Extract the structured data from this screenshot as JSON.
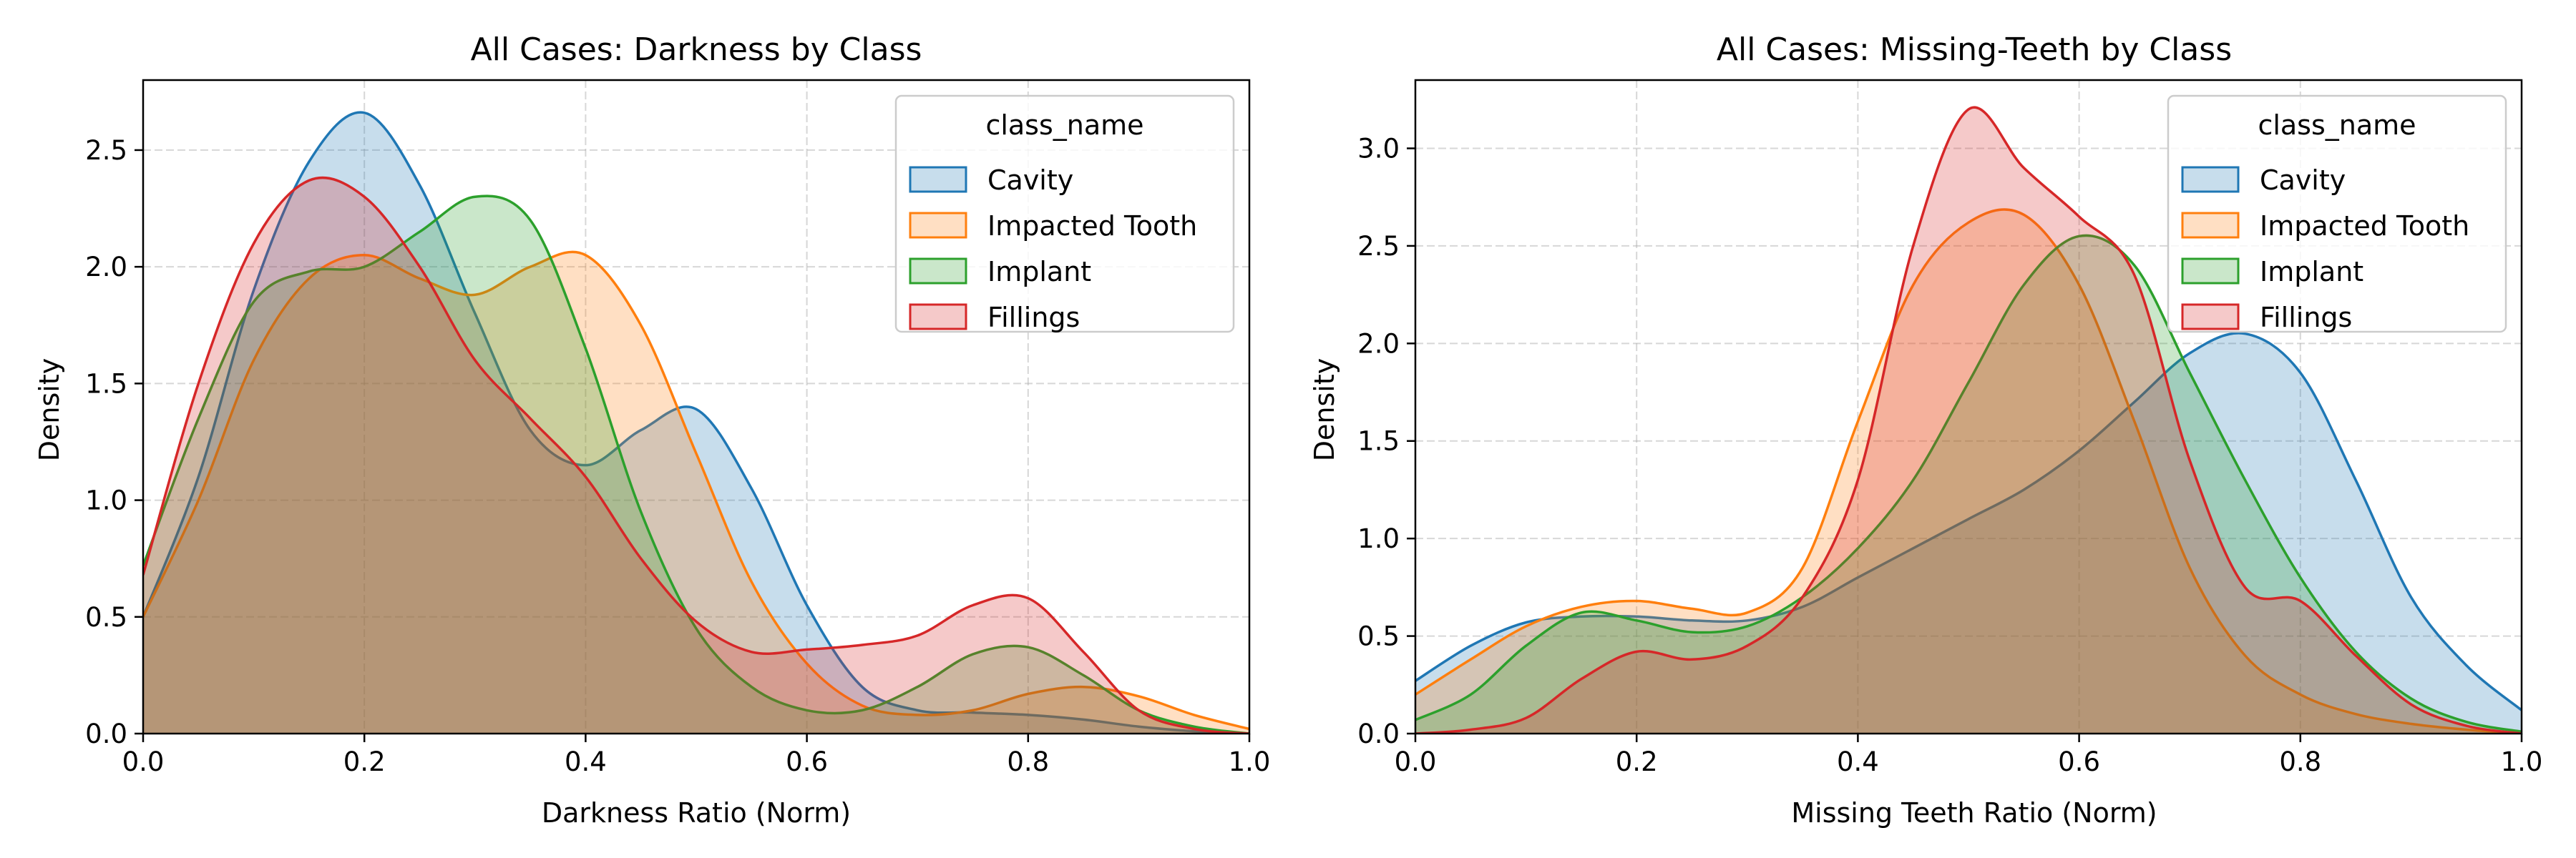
{
  "chart_data": [
    {
      "type": "area",
      "title": "All Cases: Darkness by Class",
      "xlabel": "Darkness Ratio (Norm)",
      "ylabel": "Density",
      "xlim": [
        0,
        1
      ],
      "ylim": [
        0,
        2.8
      ],
      "xticks": [
        0.0,
        0.2,
        0.4,
        0.6,
        0.8,
        1.0
      ],
      "xtick_labels": [
        "0.0",
        "0.2",
        "0.4",
        "0.6",
        "0.8",
        "1.0"
      ],
      "yticks": [
        0.0,
        0.5,
        1.0,
        1.5,
        2.0,
        2.5
      ],
      "ytick_labels": [
        "0.0",
        "0.5",
        "1.0",
        "1.5",
        "2.0",
        "2.5"
      ],
      "grid": true,
      "legend": {
        "title": "class_name",
        "position": "top-right"
      },
      "series": [
        {
          "name": "Cavity",
          "color": "#1f77b4",
          "x": [
            0.0,
            0.05,
            0.1,
            0.15,
            0.2,
            0.25,
            0.3,
            0.35,
            0.4,
            0.45,
            0.5,
            0.55,
            0.6,
            0.65,
            0.7,
            0.75,
            0.8,
            0.85,
            0.9,
            0.95,
            1.0
          ],
          "y": [
            0.5,
            1.1,
            1.9,
            2.45,
            2.66,
            2.35,
            1.8,
            1.3,
            1.15,
            1.3,
            1.39,
            1.05,
            0.55,
            0.2,
            0.1,
            0.09,
            0.08,
            0.06,
            0.03,
            0.01,
            0.0
          ]
        },
        {
          "name": "Impacted Tooth",
          "color": "#ff7f0e",
          "x": [
            0.0,
            0.05,
            0.1,
            0.15,
            0.2,
            0.25,
            0.3,
            0.35,
            0.4,
            0.45,
            0.5,
            0.55,
            0.6,
            0.65,
            0.7,
            0.75,
            0.8,
            0.85,
            0.9,
            0.95,
            1.0
          ],
          "y": [
            0.5,
            1.0,
            1.6,
            1.95,
            2.05,
            1.95,
            1.88,
            2.0,
            2.05,
            1.75,
            1.2,
            0.65,
            0.3,
            0.12,
            0.08,
            0.1,
            0.17,
            0.2,
            0.16,
            0.08,
            0.02
          ]
        },
        {
          "name": "Implant",
          "color": "#2ca02c",
          "x": [
            0.0,
            0.05,
            0.1,
            0.15,
            0.2,
            0.25,
            0.3,
            0.35,
            0.4,
            0.45,
            0.5,
            0.55,
            0.6,
            0.65,
            0.7,
            0.75,
            0.8,
            0.85,
            0.9,
            0.95,
            1.0
          ],
          "y": [
            0.72,
            1.35,
            1.85,
            1.98,
            2.0,
            2.15,
            2.3,
            2.2,
            1.65,
            0.95,
            0.45,
            0.2,
            0.1,
            0.1,
            0.2,
            0.34,
            0.37,
            0.25,
            0.1,
            0.03,
            0.0
          ]
        },
        {
          "name": "Fillings",
          "color": "#d62728",
          "x": [
            0.0,
            0.05,
            0.1,
            0.15,
            0.2,
            0.25,
            0.3,
            0.35,
            0.4,
            0.45,
            0.5,
            0.55,
            0.6,
            0.65,
            0.7,
            0.75,
            0.8,
            0.85,
            0.9,
            0.95,
            1.0
          ],
          "y": [
            0.68,
            1.5,
            2.1,
            2.37,
            2.3,
            2.0,
            1.6,
            1.35,
            1.1,
            0.75,
            0.48,
            0.35,
            0.36,
            0.38,
            0.42,
            0.55,
            0.58,
            0.35,
            0.1,
            0.02,
            0.0
          ]
        }
      ]
    },
    {
      "type": "area",
      "title": "All Cases: Missing-Teeth by Class",
      "xlabel": "Missing Teeth Ratio (Norm)",
      "ylabel": "Density",
      "xlim": [
        0,
        1
      ],
      "ylim": [
        0,
        3.35
      ],
      "xticks": [
        0.0,
        0.2,
        0.4,
        0.6,
        0.8,
        1.0
      ],
      "xtick_labels": [
        "0.0",
        "0.2",
        "0.4",
        "0.6",
        "0.8",
        "1.0"
      ],
      "yticks": [
        0.0,
        0.5,
        1.0,
        1.5,
        2.0,
        2.5,
        3.0
      ],
      "ytick_labels": [
        "0.0",
        "0.5",
        "1.0",
        "1.5",
        "2.0",
        "2.5",
        "3.0"
      ],
      "grid": true,
      "legend": {
        "title": "class_name",
        "position": "top-right"
      },
      "series": [
        {
          "name": "Cavity",
          "color": "#1f77b4",
          "x": [
            0.0,
            0.05,
            0.1,
            0.15,
            0.2,
            0.25,
            0.3,
            0.35,
            0.4,
            0.45,
            0.5,
            0.55,
            0.6,
            0.65,
            0.7,
            0.75,
            0.8,
            0.85,
            0.9,
            0.95,
            1.0
          ],
          "y": [
            0.27,
            0.45,
            0.57,
            0.6,
            0.6,
            0.58,
            0.58,
            0.65,
            0.8,
            0.95,
            1.1,
            1.25,
            1.45,
            1.7,
            1.95,
            2.05,
            1.85,
            1.3,
            0.7,
            0.35,
            0.12
          ]
        },
        {
          "name": "Impacted Tooth",
          "color": "#ff7f0e",
          "x": [
            0.0,
            0.05,
            0.1,
            0.15,
            0.2,
            0.25,
            0.3,
            0.35,
            0.4,
            0.45,
            0.5,
            0.55,
            0.6,
            0.65,
            0.7,
            0.75,
            0.8,
            0.85,
            0.9,
            0.95,
            1.0
          ],
          "y": [
            0.2,
            0.38,
            0.55,
            0.65,
            0.68,
            0.64,
            0.62,
            0.85,
            1.6,
            2.3,
            2.62,
            2.66,
            2.3,
            1.6,
            0.85,
            0.4,
            0.2,
            0.1,
            0.05,
            0.02,
            0.0
          ]
        },
        {
          "name": "Implant",
          "color": "#2ca02c",
          "x": [
            0.0,
            0.05,
            0.1,
            0.15,
            0.2,
            0.25,
            0.3,
            0.35,
            0.4,
            0.45,
            0.5,
            0.55,
            0.6,
            0.65,
            0.7,
            0.75,
            0.8,
            0.85,
            0.9,
            0.95,
            1.0
          ],
          "y": [
            0.07,
            0.2,
            0.45,
            0.62,
            0.58,
            0.52,
            0.55,
            0.7,
            0.95,
            1.3,
            1.8,
            2.3,
            2.55,
            2.4,
            1.85,
            1.3,
            0.8,
            0.42,
            0.18,
            0.06,
            0.01
          ]
        },
        {
          "name": "Fillings",
          "color": "#d62728",
          "x": [
            0.0,
            0.05,
            0.1,
            0.15,
            0.2,
            0.25,
            0.3,
            0.35,
            0.4,
            0.45,
            0.5,
            0.55,
            0.6,
            0.65,
            0.7,
            0.75,
            0.8,
            0.85,
            0.9,
            0.95,
            1.0
          ],
          "y": [
            0.0,
            0.02,
            0.08,
            0.28,
            0.42,
            0.38,
            0.45,
            0.7,
            1.3,
            2.5,
            3.2,
            2.9,
            2.65,
            2.35,
            1.4,
            0.75,
            0.68,
            0.4,
            0.15,
            0.04,
            0.0
          ]
        }
      ]
    }
  ]
}
